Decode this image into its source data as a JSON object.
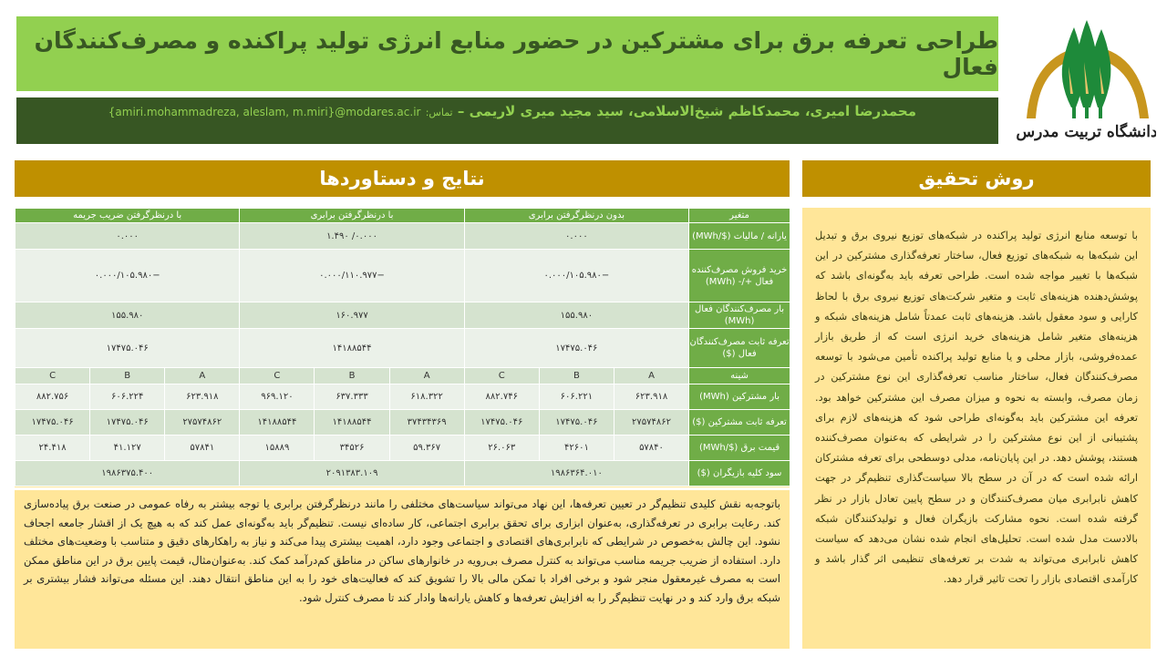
{
  "title": "طراحی تعرفه برق برای مشترکین در حضور منابع انرژی تولید پراکنده و مصرف‌کنندگان فعال",
  "authors": "محمدرضا امیری، محمدکاظم شیخ‌الاسلامی، سید مجید میری لاریمی",
  "contact_label": "تماس:",
  "email": "{amiri.mohammadreza, aleslam, m.miri}@modares.ac.ir",
  "logo": {
    "text": "دانشگاه تربیت مدرس",
    "colors": {
      "arc": "#c8961e",
      "tree": "#1e8a3a"
    }
  },
  "colors": {
    "title_bg": "#92d050",
    "authors_bg": "#375623",
    "section_head": "#bf9000",
    "text_bg": "#ffe699",
    "table_head": "#70ad47"
  },
  "method": {
    "heading": "روش تحقیق",
    "text": "با توسعه منابع انرژی تولید پراکنده در شبکه‌های توزیع نیروی برق و تبدیل این شبکه‌ها به شبکه‌های توزیع فعال، ساختار تعرفه‌گذاری مشترکین در این شبکه‌ها با تغییر مواجه شده است. طراحی تعرفه باید به‌گونه‌ای باشد که پوشش‌دهنده هزینه‌های ثابت و متغیر شرکت‌های توزیع نیروی برق با لحاظ کارایی و سود معقول باشد. هزینه‌های ثابت عمدتاً شامل هزینه‌های شبکه و هزینه‌های متغیر شامل هزینه‌های خرید انرژی است که از طریق بازار عمده‌فروشی، بازار محلی و یا منابع تولید پراکنده تأمین می‌شود با توسعه مصرف‌کنندگان فعال، ساختار مناسب تعرفه‌گذاری این نوع مشترکین در زمان مصرف، وابسته به نحوه و میزان مصرف این مشترکین خواهد بود. تعرفه این مشترکین باید به‌گونه‌ای طراحی شود که هزینه‌های لازم برای پشتیبانی از این نوع مشترکین را در شرایطی که به‌عنوان مصرف‌کننده هستند، پوشش دهد. در این پایان‌نامه، مدلی دوسطحی برای تعرفه مشترکان ارائه شده است که در آن در سطح بالا سیاست‌گذاری تنظیم‌گر در جهت کاهش نابرابری میان مصرف‌کنندگان و در سطح پایین تعادل بازار در نظر گرفته شده است. نحوه مشارکت بازیگران فعال و تولیدکنندگان شبکه بالادست مدل شده است. تحلیل‌های انجام شده نشان می‌دهد که سیاست کاهش نابرابری می‌تواند به شدت بر تعرفه‌های تنظیمی اثر گذار باشد و کارآمدی اقتصادی بازار را تحت تاثیر قرار دهد."
  },
  "results": {
    "heading": "نتایج و دستاوردها",
    "text": "باتوجه‌به نقش کلیدی تنظیم‌گر در تعیین تعرفه‌ها، این نهاد می‌تواند سیاست‌های مختلفی را مانند درنظرگرفتن برابری یا توجه بیشتر به رفاه عمومی در صنعت برق پیاده‌سازی کند. رعایت برابری در تعرفه‌گذاری، به‌عنوان ابزاری برای تحقق برابری اجتماعی، کار ساده‌ای نیست. تنظیم‌گر باید به‌گونه‌ای عمل کند که به هیچ یک از اقشار جامعه اجحاف نشود. این چالش به‌خصوص در شرایطی که نابرابری‌های اقتصادی و اجتماعی وجود دارد، اهمیت بیشتری پیدا می‌کند و نیاز به راهکارهای دقیق و متناسب با وضعیت‌های مختلف دارد. استفاده از ضریب جریمه مناسب می‌تواند به کنترل مصرف بی‌رویه در خانوارهای ساکن در مناطق کم‌درآمد کمک کند. به‌عنوان‌مثال، قیمت پایین برق در این مناطق ممکن است به مصرف غیرمعقول منجر شود و برخی افراد با تمکن مالی بالا را تشویق کند که فعالیت‌های خود را به این مناطق انتقال دهند. این مسئله می‌تواند فشار بیشتری بر شبکه برق وارد کند و در نهایت تنظیم‌گر را به افزایش تعرفه‌ها و کاهش یارانه‌ها وادار کند تا مصرف کنترل شود.",
    "table": {
      "headers": [
        "متغیر",
        "بدون درنظرگرفتن برابری",
        "با درنظرگرفتن برابری",
        "با درنظرگرفتن ضریب جریمه"
      ],
      "merged_rows": [
        {
          "label": "یارانه / مالیات ($/MWh)",
          "values": [
            "۰.۰۰۰",
            "۰.۰۰۰/ ۱.۴۹۰",
            "۰.۰۰۰"
          ]
        },
        {
          "label": "خرید فروش مصرف‌کننده فعال +/- (MWh)",
          "values": [
            "−۰.۰۰۰/۱۰۵.۹۸۰",
            "−۰.۰۰۰/۱۱۰.۹۷۷",
            "−۰.۰۰۰/۱۰۵.۹۸۰"
          ]
        },
        {
          "label": "بار مصرف‌کنندگان فعال (MWh)",
          "values": [
            "۱۵۵.۹۸۰",
            "۱۶۰.۹۷۷",
            "۱۵۵.۹۸۰"
          ]
        },
        {
          "label": "تعرفه ثابت مصرف‌کنندگان فعال ($)",
          "values": [
            "۱۷۴۷۵.۰۴۶",
            "۱۴۱۸۸۵۴۴",
            "۱۷۴۷۵.۰۴۶"
          ]
        }
      ],
      "scenario_label": "شینه",
      "scenarios": [
        "A",
        "B",
        "C",
        "A",
        "B",
        "C",
        "A",
        "B",
        "C"
      ],
      "scenario_rows": [
        {
          "label": "بار مشترکین (MWh)",
          "values": [
            "۶۲۳.۹۱۸",
            "۶۰۶.۲۲۱",
            "۸۸۲.۷۴۶",
            "۶۱۸.۳۲۲",
            "۶۳۷.۳۳۳",
            "۹۶۹.۱۲۰",
            "۶۲۳.۹۱۸",
            "۶۰۶.۲۲۴",
            "۸۸۲.۷۵۶"
          ]
        },
        {
          "label": "تعرفه ثابت مشترکین ($)",
          "values": [
            "۲۷۵۷۴۸۶۲",
            "۱۷۴۷۵.۰۴۶",
            "۱۷۴۷۵.۰۴۶",
            "۳۷۴۳۴۳۶۹",
            "۱۴۱۸۸۵۴۴",
            "۱۴۱۸۸۵۴۴",
            "۲۷۵۷۴۸۶۲",
            "۱۷۴۷۵.۰۴۶",
            "۱۷۴۷۵.۰۴۶"
          ]
        },
        {
          "label": "قیمت برق ($/MWh)",
          "values": [
            "۵۷۸۴۰",
            "۴۲۶۰۱",
            "۲۶.۰۶۳",
            "۵۹.۳۶۷",
            "۳۴۵۲۶",
            "۱۵۸۸۹",
            "۵۷۸۴۱",
            "۴۱.۱۲۷",
            "۲۴.۴۱۸"
          ]
        }
      ],
      "total_row": {
        "label": "سود کلیه بازیگران ($)",
        "values": [
          "۱۹۸۶۳۶۴.۰۱۰",
          "۲۰۹۱۳۸۳.۱۰۹",
          "۱۹۸۶۳۷۵.۴۰۰"
        ]
      }
    }
  }
}
